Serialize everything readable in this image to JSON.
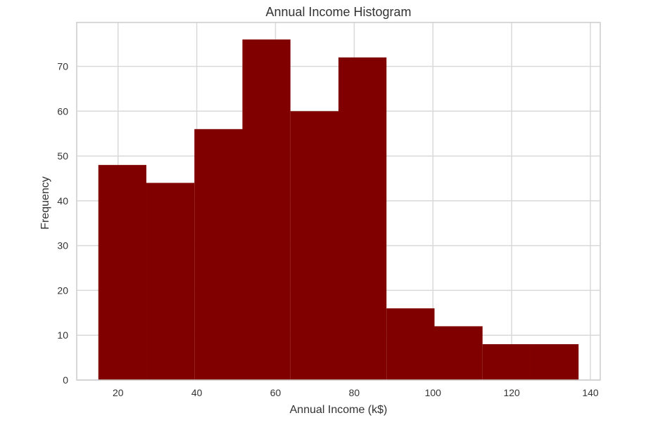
{
  "chart_data": {
    "type": "bar",
    "title": "Annual Income Histogram",
    "xlabel": "Annual Income (k$)",
    "ylabel": "Frequency",
    "xlim": [
      9.5,
      142.5
    ],
    "ylim": [
      0,
      79.8
    ],
    "grid": true,
    "bar_color": "#800000",
    "bins": [
      {
        "x0": 15.0,
        "x1": 27.2,
        "value": 48
      },
      {
        "x0": 27.2,
        "x1": 39.4,
        "value": 44
      },
      {
        "x0": 39.4,
        "x1": 51.6,
        "value": 56
      },
      {
        "x0": 51.6,
        "x1": 63.8,
        "value": 76
      },
      {
        "x0": 63.8,
        "x1": 76.0,
        "value": 60
      },
      {
        "x0": 76.0,
        "x1": 88.2,
        "value": 72
      },
      {
        "x0": 88.2,
        "x1": 100.4,
        "value": 16
      },
      {
        "x0": 100.4,
        "x1": 112.6,
        "value": 12
      },
      {
        "x0": 112.6,
        "x1": 124.8,
        "value": 8
      },
      {
        "x0": 124.8,
        "x1": 137.0,
        "value": 8
      }
    ],
    "xticks": [
      {
        "value": 20,
        "label": "20"
      },
      {
        "value": 40,
        "label": "40"
      },
      {
        "value": 60,
        "label": "60"
      },
      {
        "value": 80,
        "label": "80"
      },
      {
        "value": 100,
        "label": "100"
      },
      {
        "value": 120,
        "label": "120"
      },
      {
        "value": 140,
        "label": "140"
      }
    ],
    "yticks": [
      {
        "value": 0,
        "label": "0"
      },
      {
        "value": 10,
        "label": "10"
      },
      {
        "value": 20,
        "label": "20"
      },
      {
        "value": 30,
        "label": "30"
      },
      {
        "value": 40,
        "label": "40"
      },
      {
        "value": 50,
        "label": "50"
      },
      {
        "value": 60,
        "label": "60"
      },
      {
        "value": 70,
        "label": "70"
      }
    ]
  }
}
